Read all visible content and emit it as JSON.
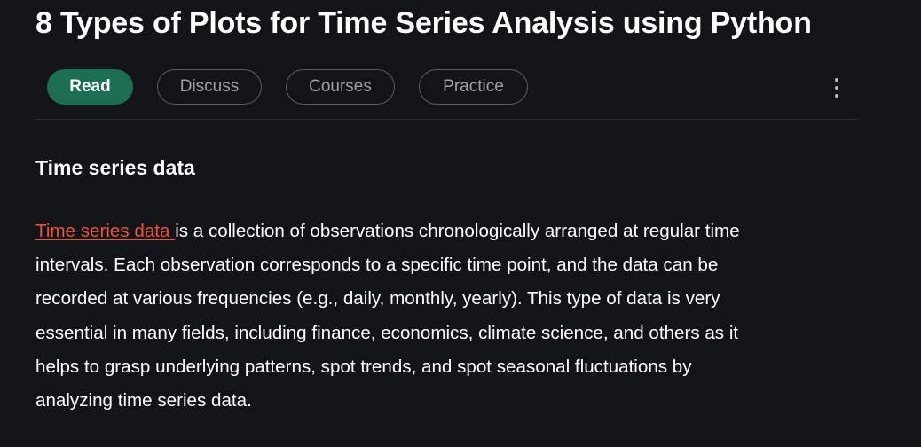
{
  "article": {
    "title": "8 Types of Plots for Time Series Analysis using Python"
  },
  "tabs": [
    {
      "label": "Read",
      "active": true
    },
    {
      "label": "Discuss",
      "active": false
    },
    {
      "label": "Courses",
      "active": false
    },
    {
      "label": "Practice",
      "active": false
    }
  ],
  "menu": {
    "icon": "kebab-menu-icon"
  },
  "section": {
    "heading": "Time series data",
    "link_text": "Time series data ",
    "paragraph_lines": [
      " is a collection of observations chronologically arranged at regular time",
      "intervals. Each observation corresponds to a specific time point, and the data can be",
      "recorded at various frequencies (e.g., daily, monthly, yearly). This type of data is very",
      "essential in many fields, including finance, economics, climate science, and others as it",
      "helps to grasp underlying patterns, spot trends, and spot seasonal fluctuations by",
      "analyzing time series data."
    ]
  },
  "colors": {
    "background": "#131417",
    "accent_green": "#1b6e51",
    "link_orange": "#e8533a"
  }
}
